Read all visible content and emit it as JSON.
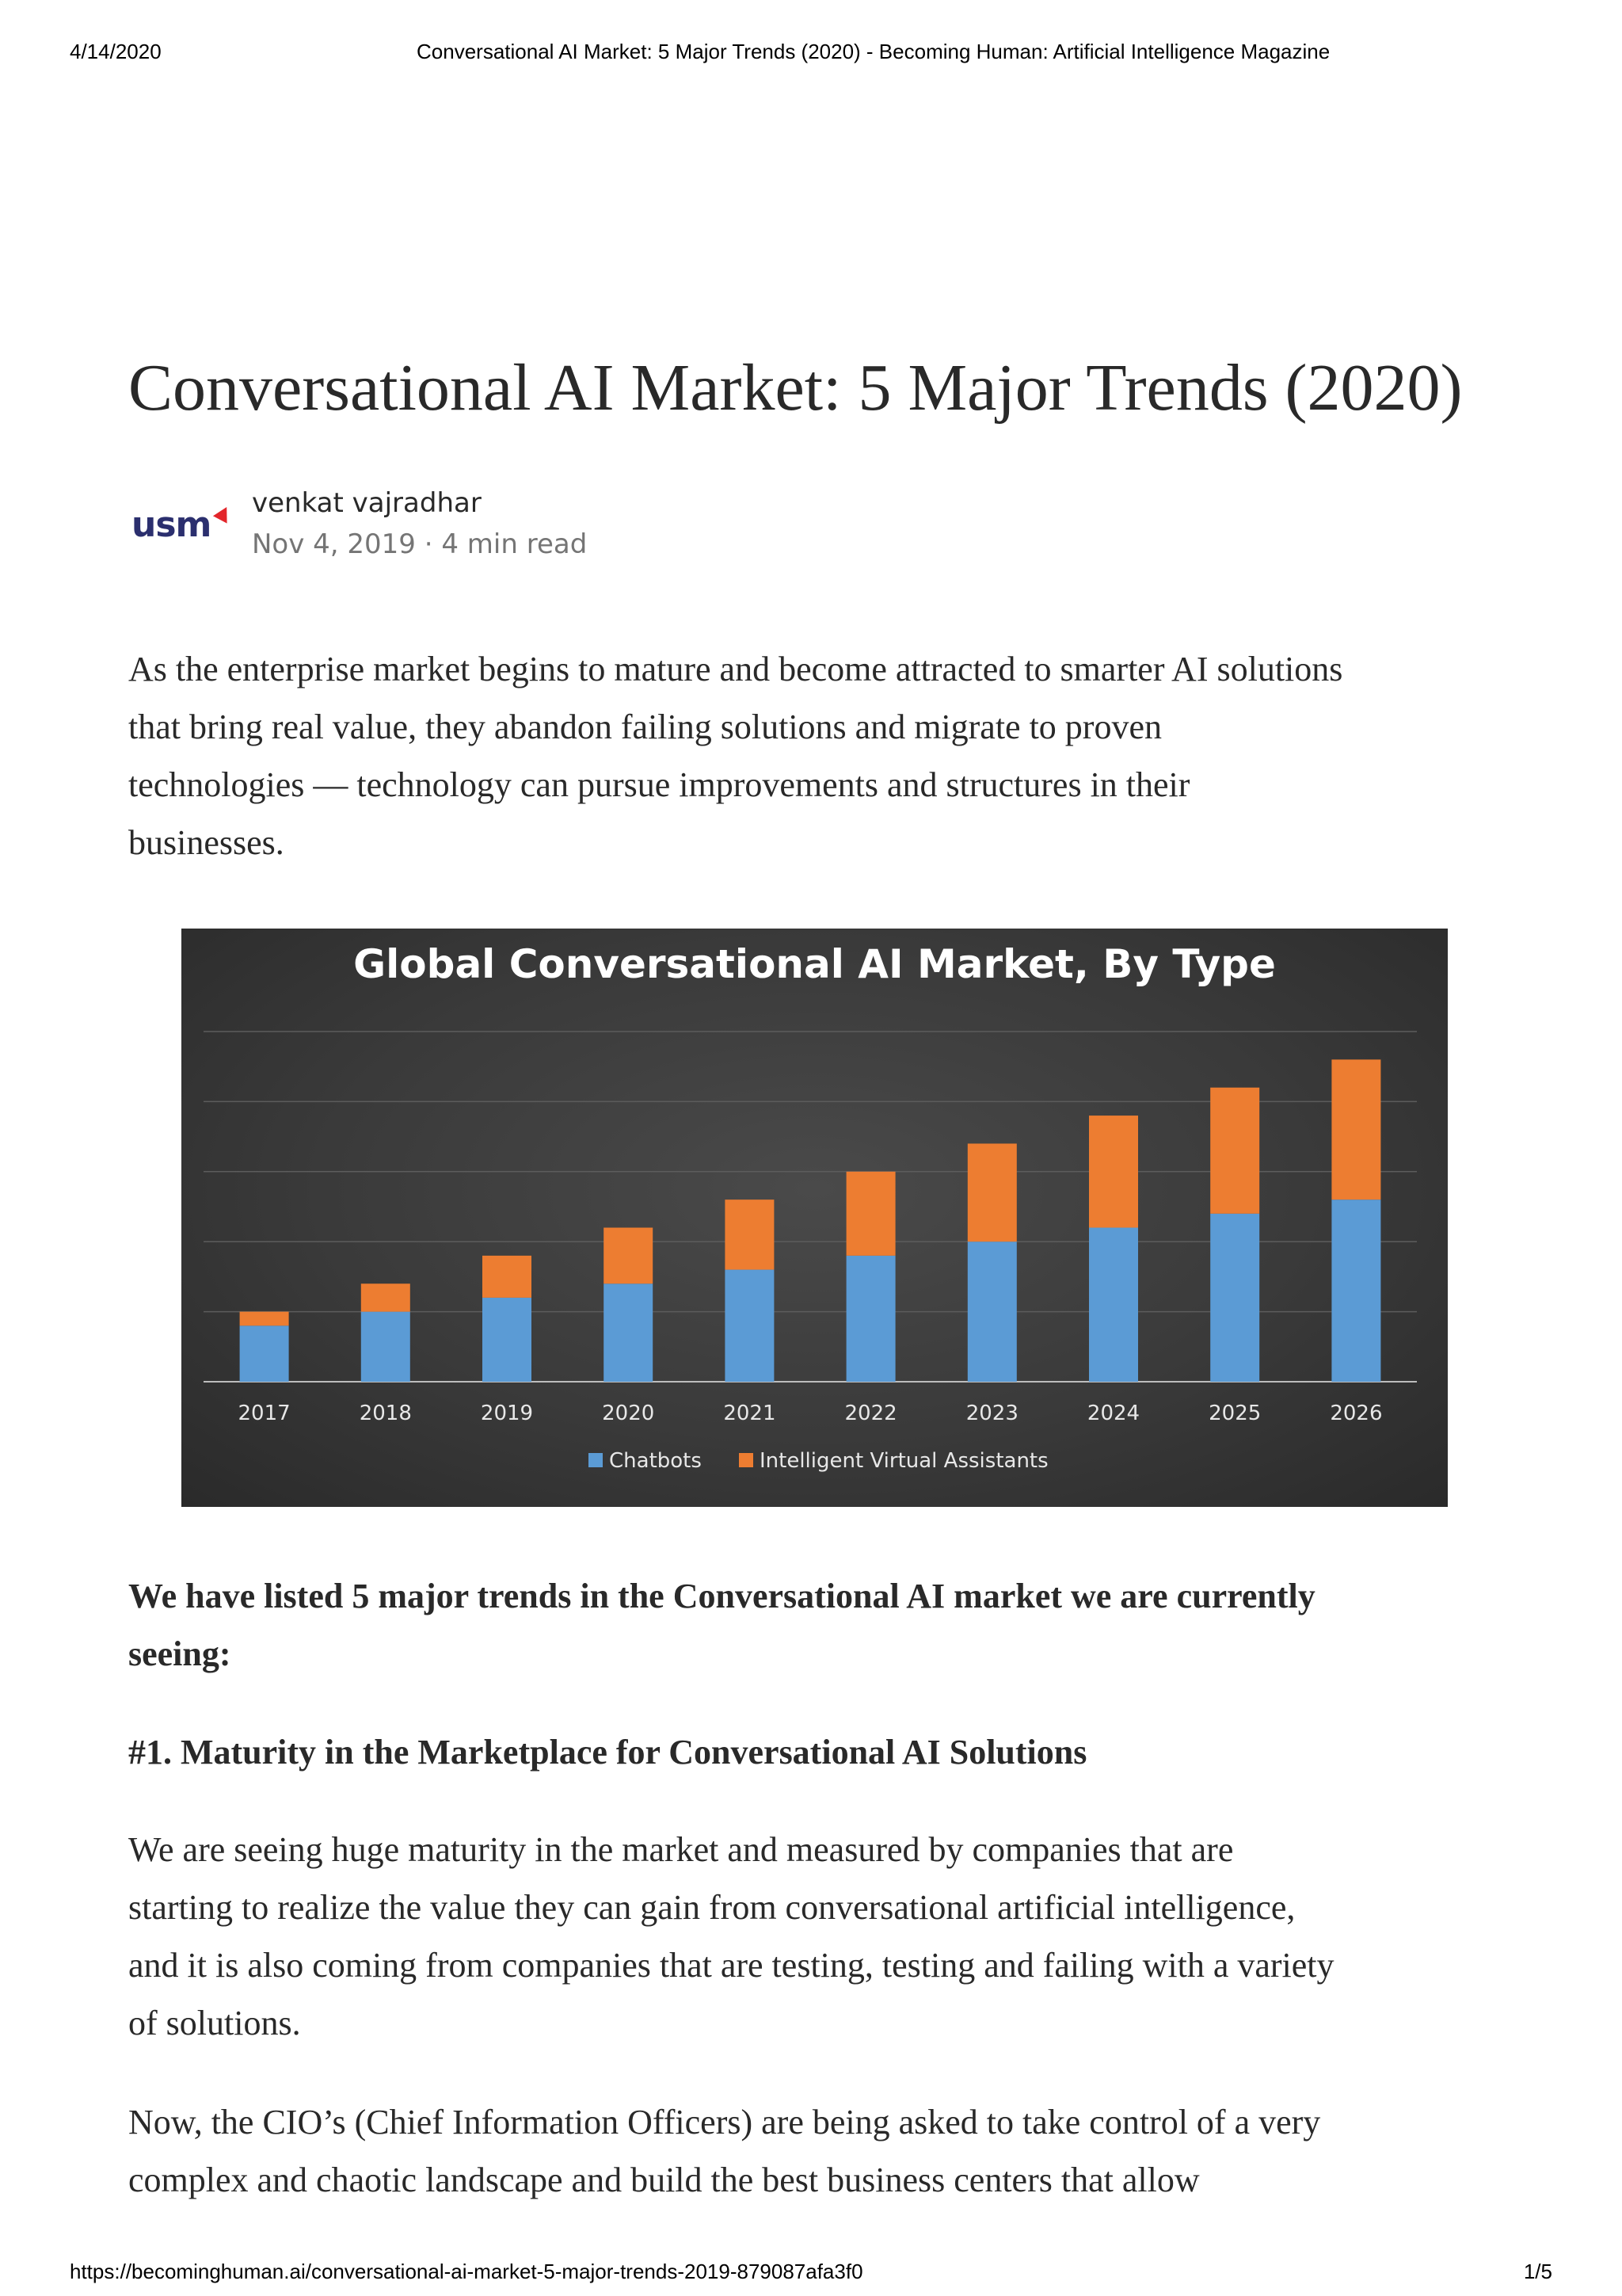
{
  "print_header": {
    "date": "4/14/2020",
    "page_title": "Conversational AI Market: 5 Major Trends (2020) - Becoming Human: Artificial Intelligence Magazine"
  },
  "article": {
    "title": "Conversational AI Market: 5 Major Trends (2020)",
    "logo_text": "usm",
    "author": "venkat vajradhar",
    "meta": "Nov 4, 2019 · 4 min read",
    "intro_lines": [
      "As the enterprise market begins to mature and become attracted to smarter AI solutions",
      "that bring real value, they abandon failing solutions and migrate to proven",
      "technologies — technology can pursue improvements and structures in their",
      "businesses."
    ],
    "lead_lines": [
      "We have listed 5 major trends in the Conversational AI market we are currently",
      "seeing:"
    ],
    "heading1": "#1. Maturity in the Marketplace for Conversational AI Solutions",
    "para2_lines": [
      "We are seeing huge maturity in the market and measured by companies that are",
      "starting to realize the value they can gain from conversational artificial intelligence,",
      "and it is also coming from companies that are testing, testing and failing with a variety",
      "of solutions."
    ],
    "para3_lines": [
      "Now, the CIO’s (Chief Information Officers) are being asked to take control of a very",
      "complex and chaotic landscape and build the best business centers that allow"
    ]
  },
  "print_footer": {
    "url": "https://becominghuman.ai/conversational-ai-market-5-major-trends-2019-879087afa3f0",
    "page": "1/5"
  },
  "chart_data": {
    "type": "bar",
    "stacked": true,
    "title": "Global Conversational AI Market, By Type",
    "xlabel": "",
    "ylabel": "",
    "categories": [
      "2017",
      "2018",
      "2019",
      "2020",
      "2021",
      "2022",
      "2023",
      "2024",
      "2025",
      "2026"
    ],
    "series": [
      {
        "name": "Chatbots",
        "color": "#5b9bd5",
        "values": [
          0.8,
          1.0,
          1.2,
          1.4,
          1.6,
          1.8,
          2.0,
          2.2,
          2.4,
          2.6
        ]
      },
      {
        "name": "Intelligent Virtual Assistants",
        "color": "#ed7d31",
        "values": [
          0.2,
          0.4,
          0.6,
          0.8,
          1.0,
          1.2,
          1.4,
          1.6,
          1.8,
          2.0
        ]
      }
    ],
    "ylim": [
      0,
      5
    ],
    "grid": true,
    "legend": "bottom",
    "background": "#3a3a3a",
    "text_color": "#ffffff"
  }
}
